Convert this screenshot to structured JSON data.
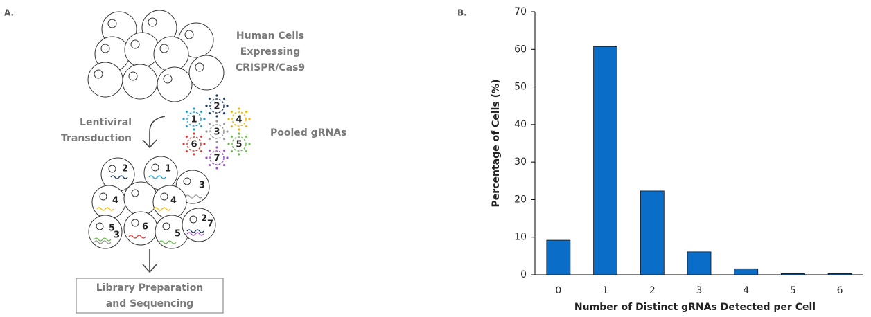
{
  "panel_labels": [
    "A.",
    "B."
  ],
  "diagram": {
    "cells_label": [
      "Human Cells",
      "Expressing",
      "CRISPR/Cas9"
    ],
    "transduction_label": [
      "Lentiviral",
      "Transduction"
    ],
    "pool_label": "Pooled gRNAs",
    "virus_labels": [
      "1",
      "2",
      "3",
      "4",
      "5",
      "6",
      "7"
    ],
    "cell_labels": [
      "2",
      "1",
      "3",
      "4",
      "4",
      "5",
      "3",
      "6",
      "5",
      "2",
      "7"
    ],
    "output_label": [
      "Library Preparation",
      "and Sequencing"
    ]
  },
  "chart_data": {
    "type": "bar",
    "categories": [
      "0",
      "1",
      "2",
      "3",
      "4",
      "5",
      "6"
    ],
    "values": [
      9.2,
      60.7,
      22.3,
      6.1,
      1.6,
      0.3,
      0.3
    ],
    "color": "#0a6ec8",
    "xlabel": "Number of Distinct gRNAs Detected per Cell",
    "ylabel": "Percentage of Cells (%)",
    "ylim": [
      0,
      70
    ],
    "yticks": [
      0,
      10,
      20,
      30,
      40,
      50,
      60,
      70
    ],
    "grid": false
  }
}
